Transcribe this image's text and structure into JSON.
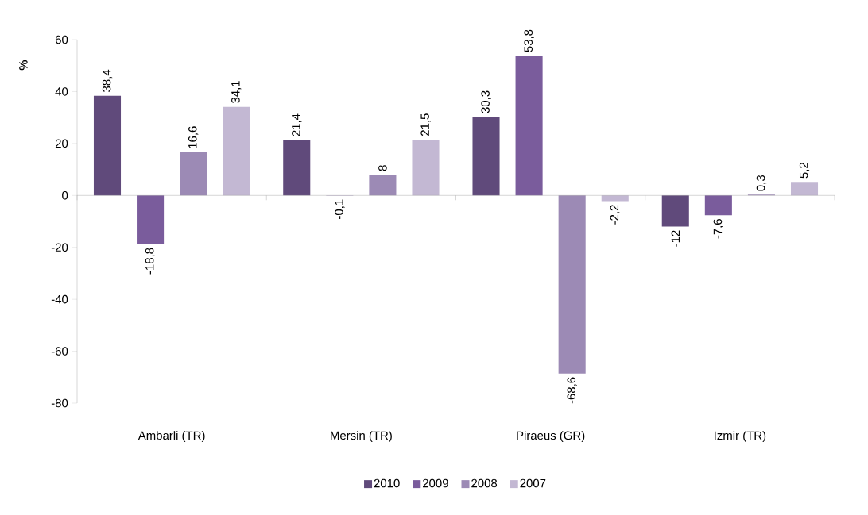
{
  "chart_data": {
    "type": "bar",
    "ylabel": "%",
    "categories": [
      "Ambarli (TR)",
      "Mersin (TR)",
      "Piraeus (GR)",
      "Izmir (TR)"
    ],
    "series": [
      {
        "name": "2010",
        "color": "#604a7b",
        "values": [
          38.4,
          21.4,
          30.3,
          -12
        ],
        "value_labels": [
          "38,4",
          "21,4",
          "30,3",
          "-12"
        ]
      },
      {
        "name": "2009",
        "color": "#7a5c9c",
        "values": [
          -18.8,
          -0.1,
          53.8,
          -7.6
        ],
        "value_labels": [
          "-18,8",
          "-0,1",
          "53,8",
          "-7,6"
        ]
      },
      {
        "name": "2008",
        "color": "#9c8ab5",
        "values": [
          16.6,
          8,
          -68.6,
          0.3
        ],
        "value_labels": [
          "16,6",
          "8",
          "-68,6",
          "0,3"
        ]
      },
      {
        "name": "2007",
        "color": "#c3b8d3",
        "values": [
          34.1,
          21.5,
          -2.2,
          5.2
        ],
        "value_labels": [
          "34,1",
          "21,5",
          "-2,2",
          "5,2"
        ]
      }
    ],
    "ylim": [
      -80,
      60
    ],
    "yticks": [
      -80,
      -60,
      -40,
      -20,
      0,
      20,
      40,
      60
    ],
    "legend": "bottom"
  }
}
